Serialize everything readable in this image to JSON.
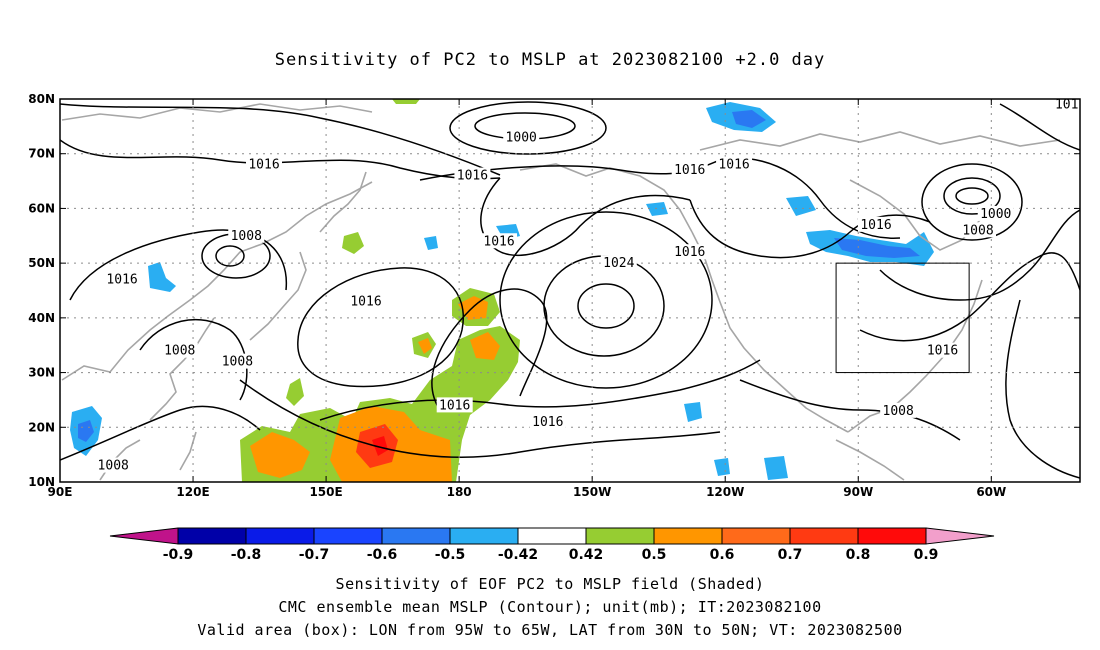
{
  "title": "Sensitivity of PC2 to MSLP at 2023082100 +2.0 day",
  "map": {
    "lon_ticks": [
      {
        "lon": 90,
        "label": "90E"
      },
      {
        "lon": 120,
        "label": "120E"
      },
      {
        "lon": 150,
        "label": "150E"
      },
      {
        "lon": 180,
        "label": "180"
      },
      {
        "lon": 210,
        "label": "150W"
      },
      {
        "lon": 240,
        "label": "120W"
      },
      {
        "lon": 270,
        "label": "90W"
      },
      {
        "lon": 300,
        "label": "60W"
      }
    ],
    "lat_ticks": [
      {
        "lat": 80,
        "label": "80N"
      },
      {
        "lat": 70,
        "label": "70N"
      },
      {
        "lat": 60,
        "label": "60N"
      },
      {
        "lat": 50,
        "label": "50N"
      },
      {
        "lat": 40,
        "label": "40N"
      },
      {
        "lat": 30,
        "label": "30N"
      },
      {
        "lat": 20,
        "label": "20N"
      },
      {
        "lat": 10,
        "label": "10N"
      }
    ],
    "lon_range": [
      90,
      320
    ],
    "lat_range": [
      10,
      80
    ],
    "valid_box": {
      "lon_min": 265,
      "lon_max": 295,
      "lat_min": 30,
      "lat_max": 50
    },
    "contour_labels": [
      {
        "text": "1016",
        "lon": 136,
        "lat": 68
      },
      {
        "text": "1000",
        "lon": 194,
        "lat": 73
      },
      {
        "text": "1016",
        "lon": 183,
        "lat": 66
      },
      {
        "text": "1016",
        "lon": 232,
        "lat": 67
      },
      {
        "text": "1016",
        "lon": 242,
        "lat": 68
      },
      {
        "text": "101",
        "lon": 317,
        "lat": 79
      },
      {
        "text": "1000",
        "lon": 301,
        "lat": 59
      },
      {
        "text": "1008",
        "lon": 297,
        "lat": 56
      },
      {
        "text": "1016",
        "lon": 274,
        "lat": 57
      },
      {
        "text": "1008",
        "lon": 132,
        "lat": 55
      },
      {
        "text": "1016",
        "lon": 189,
        "lat": 54
      },
      {
        "text": "1016",
        "lon": 232,
        "lat": 52
      },
      {
        "text": "1024",
        "lon": 216,
        "lat": 50
      },
      {
        "text": "1016",
        "lon": 104,
        "lat": 47
      },
      {
        "text": "1016",
        "lon": 159,
        "lat": 43
      },
      {
        "text": "1008",
        "lon": 117,
        "lat": 34
      },
      {
        "text": "1008",
        "lon": 130,
        "lat": 32
      },
      {
        "text": "1016",
        "lon": 179,
        "lat": 24
      },
      {
        "text": "1016",
        "lon": 200,
        "lat": 21
      },
      {
        "text": "1016",
        "lon": 289,
        "lat": 34
      },
      {
        "text": "1008",
        "lon": 279,
        "lat": 23
      },
      {
        "text": "1008",
        "lon": 102,
        "lat": 13
      }
    ]
  },
  "colorbar": {
    "labels": [
      "-0.9",
      "-0.8",
      "-0.7",
      "-0.6",
      "-0.5",
      "-0.42",
      "0.42",
      "0.5",
      "0.6",
      "0.7",
      "0.8",
      "0.9"
    ],
    "colors": [
      "#0000a8",
      "#0a1be8",
      "#1a44ff",
      "#2a78f2",
      "#2aaef2",
      "#ffffff",
      "#96cd32",
      "#ff9600",
      "#ff6a1a",
      "#ff3a12",
      "#ff0a0a"
    ],
    "left_arrow_color": "#c0138a",
    "right_arrow_color": "#f29fcb"
  },
  "captions": [
    "Sensitivity of EOF PC2 to MSLP field (Shaded)",
    "CMC ensemble mean MSLP (Contour); unit(mb); IT:2023082100",
    "Valid area (box): LON from 95W to 65W, LAT from 30N to 50N; VT: 2023082500"
  ]
}
